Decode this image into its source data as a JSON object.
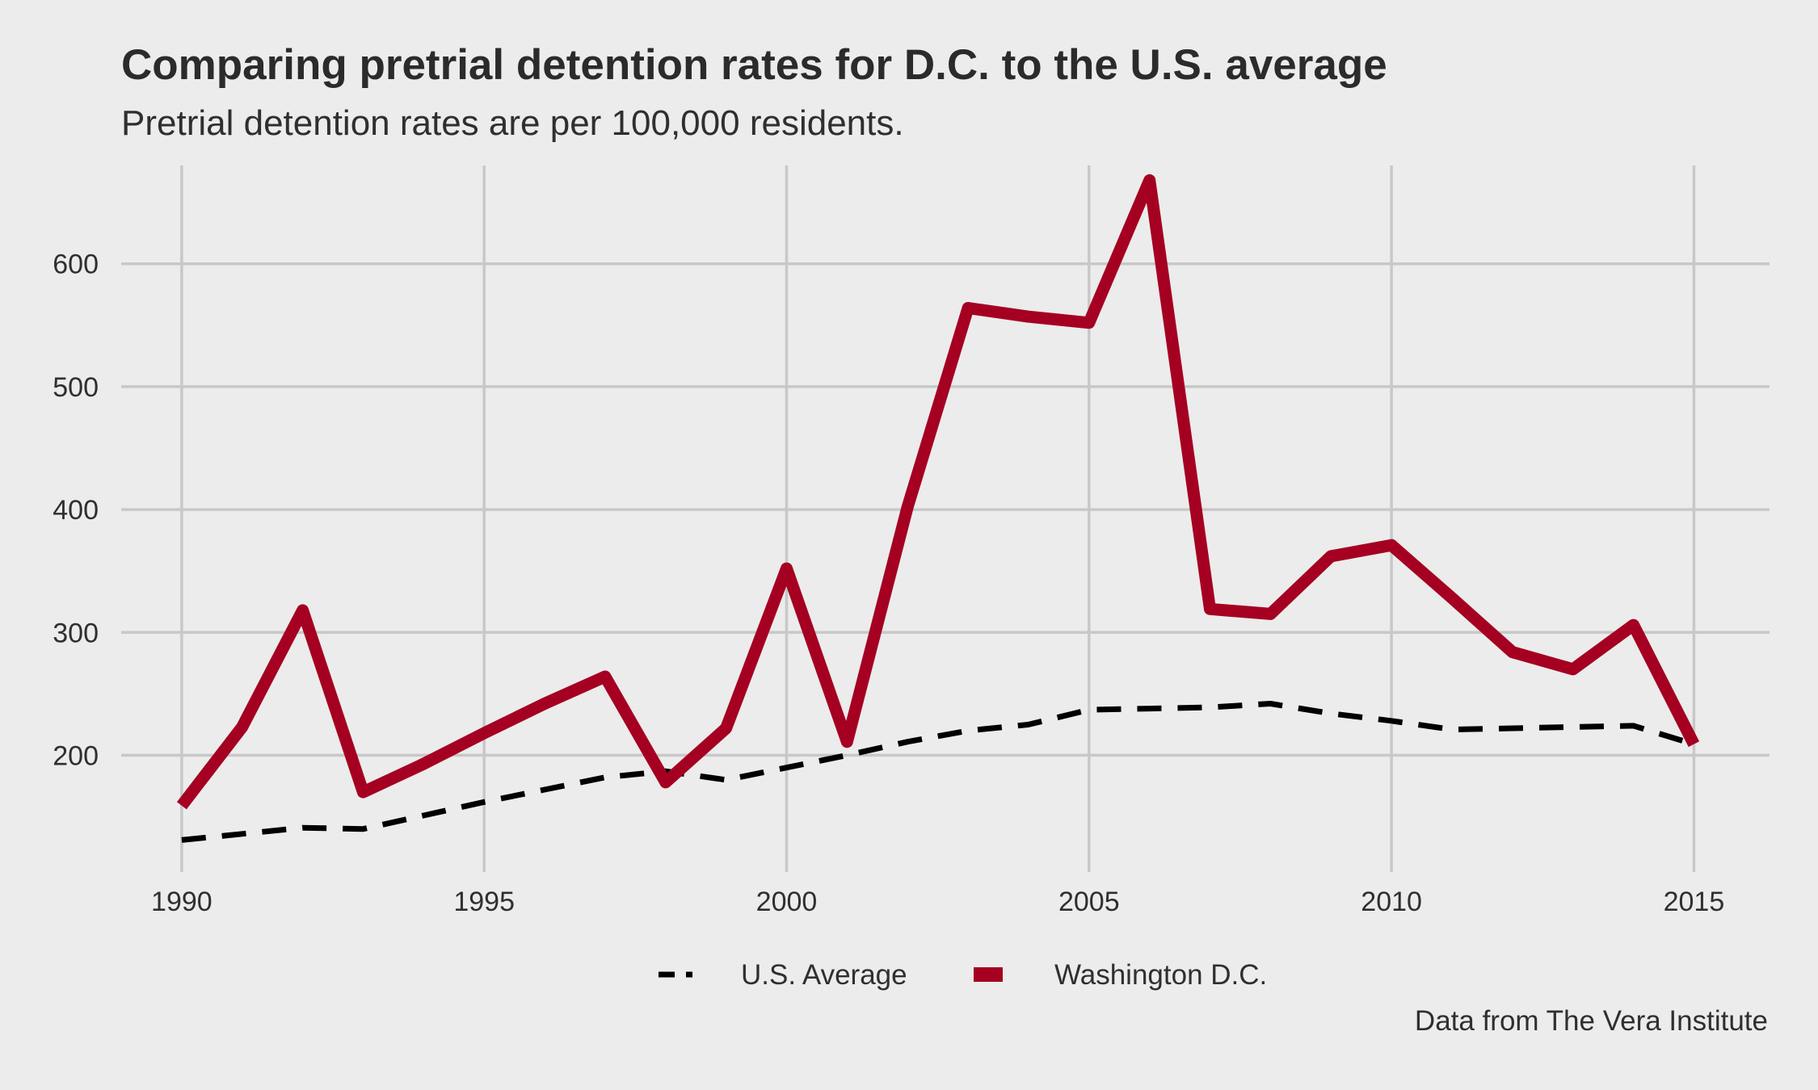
{
  "chart_data": {
    "type": "line",
    "title": "Comparing pretrial detention rates for D.C. to the U.S. average",
    "subtitle": "Pretrial detention rates are per 100,000 residents.",
    "caption": "Data from The Vera Institute",
    "xlabel": "",
    "ylabel": "",
    "x": [
      1990,
      1991,
      1992,
      1993,
      1994,
      1995,
      1996,
      1997,
      1998,
      1999,
      2000,
      2001,
      2002,
      2003,
      2004,
      2005,
      2006,
      2007,
      2008,
      2009,
      2010,
      2011,
      2012,
      2013,
      2014,
      2015
    ],
    "xlim": [
      1989,
      2016.25
    ],
    "ylim": [
      105,
      680
    ],
    "x_ticks": [
      1990,
      1995,
      2000,
      2005,
      2010,
      2015
    ],
    "y_ticks": [
      200,
      300,
      400,
      500,
      600
    ],
    "grid": true,
    "legend_position": "bottom",
    "series": [
      {
        "name": "U.S. Average",
        "style": "dashed",
        "color": "#000000",
        "values": [
          131,
          136,
          141,
          140,
          151,
          162,
          172,
          182,
          187,
          180,
          190,
          200,
          211,
          220,
          225,
          237,
          238,
          239,
          242,
          234,
          228,
          221,
          222,
          223,
          224,
          209
        ]
      },
      {
        "name": "Washington D.C.",
        "style": "solid",
        "color": "#a50021",
        "values": [
          159,
          223,
          318,
          170,
          193,
          218,
          242,
          264,
          178,
          222,
          352,
          211,
          402,
          564,
          557,
          552,
          668,
          319,
          315,
          362,
          371,
          328,
          284,
          270,
          306,
          209
        ]
      }
    ]
  }
}
